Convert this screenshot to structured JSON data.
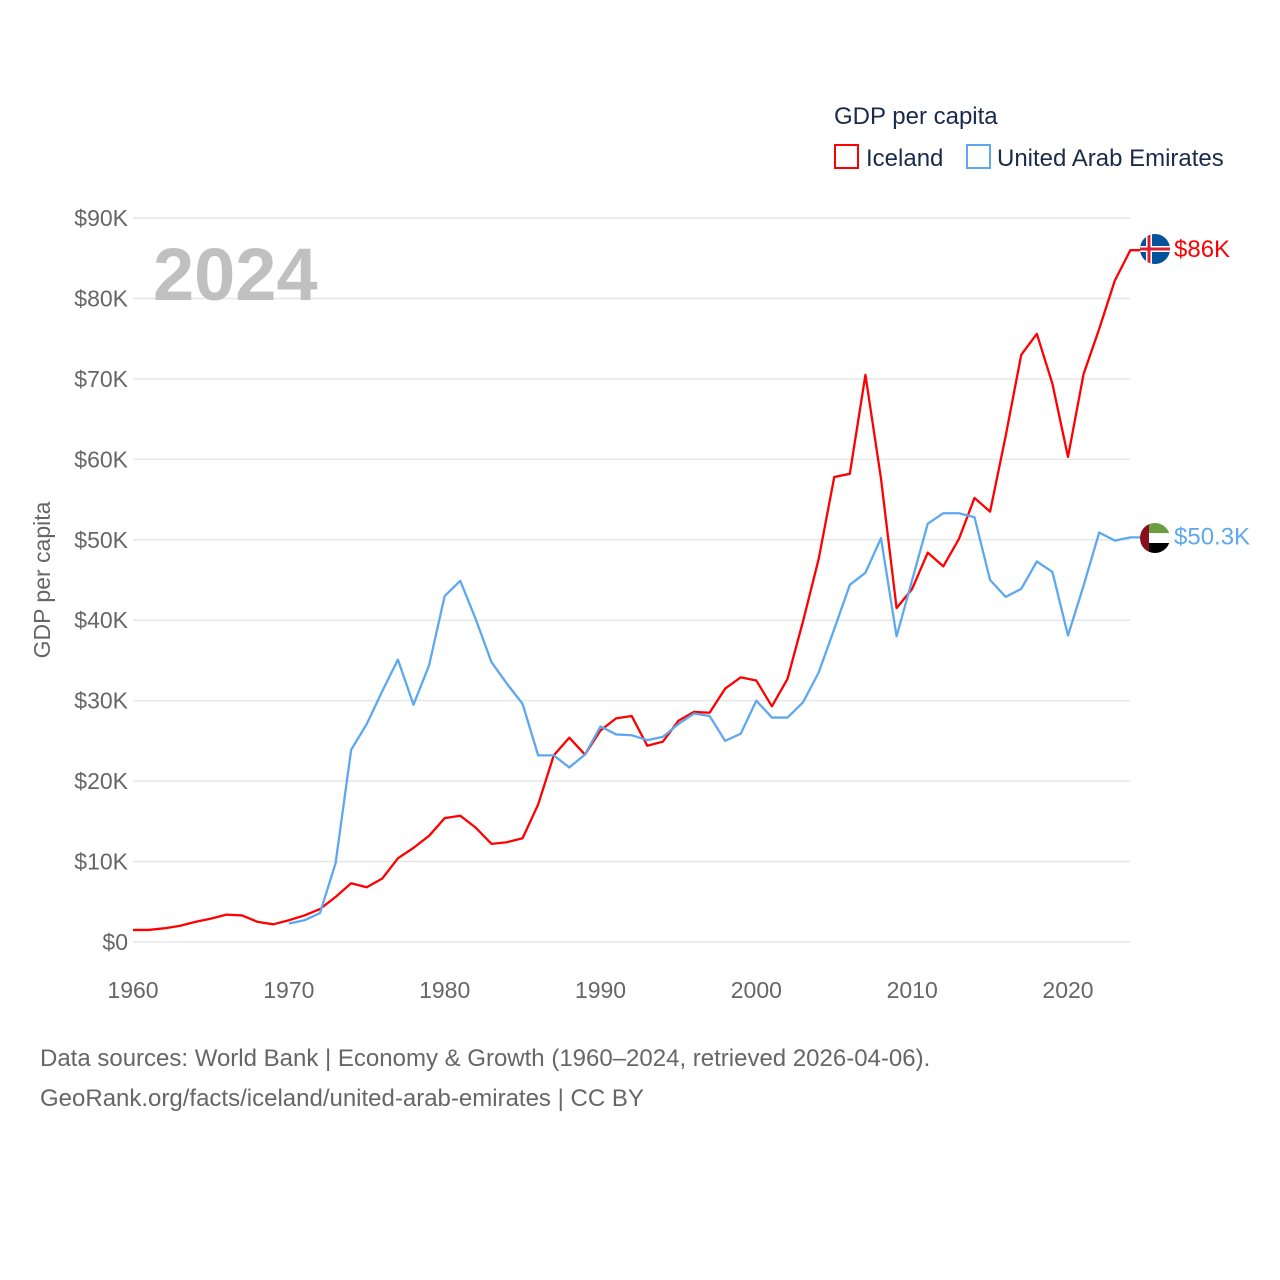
{
  "chart_data": {
    "type": "line",
    "title": "GDP per capita",
    "ylabel": "GDP per capita",
    "xlabel": "",
    "year_label": "2024",
    "xlim": [
      1960,
      2024
    ],
    "ylim": [
      0,
      90000
    ],
    "x_ticks": [
      1960,
      1970,
      1980,
      1990,
      2000,
      2010,
      2020
    ],
    "y_ticks": [
      {
        "value": 0,
        "label": "$0"
      },
      {
        "value": 10000,
        "label": "$10K"
      },
      {
        "value": 20000,
        "label": "$20K"
      },
      {
        "value": 30000,
        "label": "$30K"
      },
      {
        "value": 40000,
        "label": "$40K"
      },
      {
        "value": 50000,
        "label": "$50K"
      },
      {
        "value": 60000,
        "label": "$60K"
      },
      {
        "value": 70000,
        "label": "$70K"
      },
      {
        "value": 80000,
        "label": "$80K"
      },
      {
        "value": 90000,
        "label": "$90K"
      }
    ],
    "grid": true,
    "legend_position": "top-right",
    "series": [
      {
        "name": "Iceland",
        "color": "#ff0000",
        "end_label": "$86K",
        "flag": "iceland-flag",
        "start_year": 1960,
        "values": [
          1.5,
          1.5,
          1.7,
          2.0,
          2.5,
          2.9,
          3.4,
          3.3,
          2.5,
          2.2,
          2.7,
          3.3,
          4.1,
          5.6,
          7.3,
          6.8,
          7.9,
          10.4,
          11.7,
          13.2,
          15.4,
          15.7,
          14.2,
          12.2,
          12.4,
          12.9,
          17.1,
          23.2,
          25.4,
          23.3,
          26.3,
          27.8,
          28.1,
          24.4,
          24.9,
          27.5,
          28.6,
          28.5,
          31.5,
          32.9,
          32.5,
          29.3,
          32.7,
          39.9,
          47.6,
          57.8,
          58.2,
          70.5,
          57.6,
          41.5,
          43.9,
          48.4,
          46.7,
          50.1,
          55.2,
          53.5,
          62.9,
          73.0,
          75.6,
          69.4,
          60.3,
          70.6,
          76.2,
          82.2,
          86.0
        ],
        "unit": "thousand USD"
      },
      {
        "name": "United Arab Emirates",
        "color": "#5ea8ef",
        "end_label": "$50.3K",
        "flag": "uae-flag",
        "start_year": 1970,
        "values": [
          2.3,
          2.7,
          3.6,
          9.8,
          23.9,
          27.1,
          31.2,
          35.1,
          29.5,
          34.4,
          43.0,
          44.9,
          40.1,
          34.8,
          32.1,
          29.6,
          23.2,
          23.2,
          21.7,
          23.3,
          26.8,
          25.8,
          25.7,
          25.1,
          25.5,
          27.1,
          28.4,
          28.1,
          25.0,
          25.9,
          30.0,
          27.9,
          27.9,
          29.8,
          33.5,
          38.9,
          44.4,
          45.9,
          50.2,
          38.0,
          45.0,
          52.0,
          53.3,
          53.3,
          52.8,
          45.0,
          42.9,
          43.9,
          47.3,
          46.0,
          38.1,
          44.3,
          50.9,
          49.9,
          50.3
        ],
        "unit": "thousand USD"
      }
    ]
  },
  "footer": {
    "sources": "Data sources: World Bank | Economy & Growth (1960–2024, retrieved 2026-04-06).",
    "credit": "GeoRank.org/facts/iceland/united-arab-emirates | CC BY"
  }
}
